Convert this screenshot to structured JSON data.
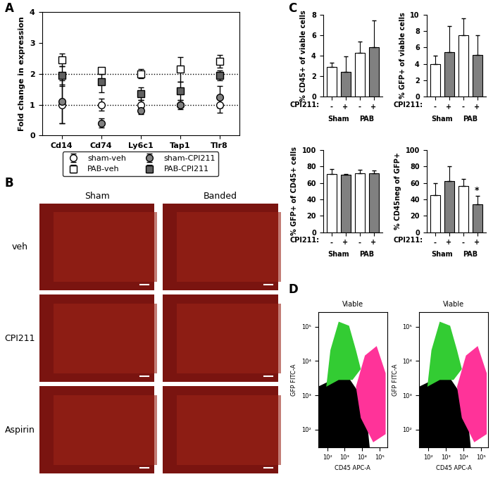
{
  "chart_data": [
    {
      "type": "scatter",
      "panel": "A",
      "y_label": "Fold change in expression",
      "categories": [
        "Cd14",
        "Cd74",
        "Ly6c1",
        "Tap1",
        "Tlr8"
      ],
      "ylim": [
        0,
        4
      ],
      "yticks": [
        0,
        1,
        2,
        3,
        4
      ],
      "reference_lines": [
        1,
        2
      ],
      "legend": "below",
      "series": [
        {
          "name": "sham-veh",
          "color": "#ffffff",
          "marker": "circle",
          "values": [
            1.0,
            1.0,
            1.0,
            1.0,
            1.0
          ],
          "errors": [
            0.6,
            0.2,
            0.15,
            0.15,
            0.25
          ]
        },
        {
          "name": "PAB-veh",
          "color": "#ffffff",
          "marker": "square",
          "values": [
            2.45,
            2.1,
            2.0,
            2.15,
            2.4
          ],
          "errors": [
            0.2,
            0.1,
            0.15,
            0.4,
            0.2
          ]
        },
        {
          "name": "sham-CPI211",
          "color": "#808080",
          "marker": "circle",
          "values": [
            1.1,
            0.4,
            0.8,
            1.0,
            1.25
          ],
          "errors": [
            0.7,
            0.15,
            0.1,
            0.05,
            0.35
          ]
        },
        {
          "name": "PAB-CPI211",
          "color": "#606060",
          "marker": "square",
          "values": [
            1.95,
            1.75,
            1.35,
            1.45,
            1.95
          ],
          "errors": [
            0.3,
            0.35,
            0.2,
            0.3,
            0.15
          ]
        }
      ]
    },
    {
      "type": "image_grid",
      "panel": "B",
      "columns": [
        "Sham",
        "Banded"
      ],
      "rows": [
        "veh",
        "CPI211",
        "Aspirin"
      ]
    },
    {
      "type": "bar",
      "panel": "C",
      "y_label": "% CD45+ of viable cells",
      "row_label": "CPI211:",
      "groups": [
        "Sham",
        "PAB"
      ],
      "categories": [
        "-",
        "+",
        "-",
        "+"
      ],
      "values": [
        2.9,
        2.4,
        4.3,
        4.8
      ],
      "errors": [
        0.4,
        1.5,
        1.1,
        2.6
      ],
      "colors": [
        "#ffffff",
        "#808080",
        "#ffffff",
        "#808080"
      ],
      "ylim": [
        0,
        8
      ],
      "yticks": [
        0,
        2,
        4,
        6,
        8
      ]
    },
    {
      "type": "bar",
      "y_label": "% GFP+ of viable cells",
      "row_label": "CPI211:",
      "groups": [
        "Sham",
        "PAB"
      ],
      "categories": [
        "-",
        "+",
        "-",
        "+"
      ],
      "values": [
        4.0,
        5.4,
        7.5,
        5.1
      ],
      "errors": [
        1.0,
        3.2,
        2.0,
        2.4
      ],
      "colors": [
        "#ffffff",
        "#808080",
        "#ffffff",
        "#808080"
      ],
      "ylim": [
        0,
        10
      ],
      "yticks": [
        0,
        2,
        4,
        6,
        8,
        10
      ]
    },
    {
      "type": "bar",
      "y_label": "% GFP+ of CD45+ cells",
      "row_label": "CPI211:",
      "groups": [
        "Sham",
        "PAB"
      ],
      "categories": [
        "-",
        "+",
        "-",
        "+"
      ],
      "values": [
        71,
        70,
        72,
        72
      ],
      "errors": [
        6,
        1,
        4,
        3
      ],
      "colors": [
        "#ffffff",
        "#808080",
        "#ffffff",
        "#808080"
      ],
      "ylim": [
        0,
        100
      ],
      "yticks": [
        0,
        20,
        40,
        60,
        80,
        100
      ]
    },
    {
      "type": "bar",
      "y_label": "% CD45neg of GFP+",
      "row_label": "CPI211:",
      "groups": [
        "Sham",
        "PAB"
      ],
      "categories": [
        "-",
        "+",
        "-",
        "+"
      ],
      "values": [
        45,
        62,
        56,
        34
      ],
      "errors": [
        15,
        18,
        9,
        10
      ],
      "colors": [
        "#ffffff",
        "#808080",
        "#ffffff",
        "#808080"
      ],
      "ylim": [
        0,
        100
      ],
      "yticks": [
        0,
        20,
        40,
        60,
        80,
        100
      ],
      "annotations": [
        {
          "text": "*",
          "group": "PAB",
          "category": "+"
        }
      ]
    },
    {
      "type": "flow_cytometry",
      "panel": "D",
      "title": "Viable",
      "x_label": "CD45 APC-A",
      "y_label": "GFP FITC-A",
      "log": true,
      "xlim": [
        30,
        262144
      ],
      "ylim": [
        30,
        262144
      ],
      "xticks": [
        {
          "value": 100,
          "label": "10²"
        },
        {
          "value": 1000,
          "label": "10³"
        },
        {
          "value": 10000,
          "label": "10⁴"
        },
        {
          "value": 100000,
          "label": "10⁵"
        }
      ],
      "yticks": [
        {
          "value": 100,
          "label": "10²"
        },
        {
          "value": 1000,
          "label": "10³"
        },
        {
          "value": 10000,
          "label": "10⁴"
        },
        {
          "value": 100000,
          "label": "10⁵"
        }
      ]
    },
    {
      "type": "flow_cytometry",
      "title": "Viable",
      "x_label": "CD45 APC-A",
      "y_label": "GFP FITC-A",
      "log": true,
      "xlim": [
        30,
        262144
      ],
      "ylim": [
        30,
        262144
      ],
      "xticks": [
        {
          "value": 100,
          "label": "10²"
        },
        {
          "value": 1000,
          "label": "10³"
        },
        {
          "value": 10000,
          "label": "10⁴"
        },
        {
          "value": 100000,
          "label": "10⁵"
        }
      ],
      "yticks": [
        {
          "value": 100,
          "label": "10²"
        },
        {
          "value": 1000,
          "label": "10³"
        },
        {
          "value": 10000,
          "label": "10⁴"
        },
        {
          "value": 100000,
          "label": "10⁵"
        }
      ]
    }
  ]
}
